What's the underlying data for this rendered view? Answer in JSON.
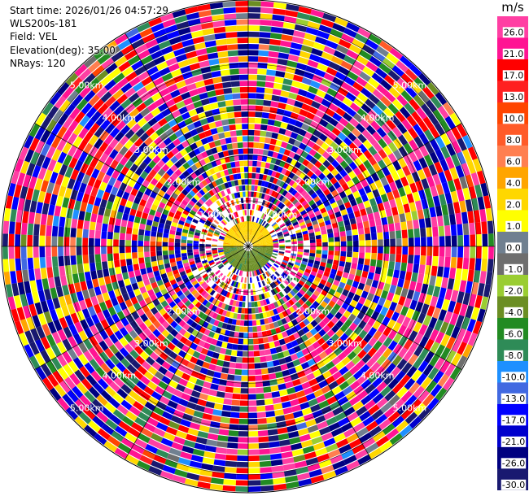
{
  "header": {
    "start_time": "Start time: 2026/01/26 04:57:29",
    "instrument": "WLS200s-181",
    "field": "Field: VEL",
    "elevation": "Elevation(deg): 35.00",
    "nrays": "NRays: 120"
  },
  "colorbar": {
    "unit": "m/s",
    "ticks": [
      "26.0",
      "21.0",
      "17.0",
      "13.0",
      "10.0",
      "8.0",
      "6.0",
      "4.0",
      "2.0",
      "1.0",
      "0.0",
      "-1.0",
      "-2.0",
      "-4.0",
      "-6.0",
      "-8.0",
      "-10.0",
      "-13.0",
      "-17.0",
      "-21.0",
      "-26.0",
      "-30.0"
    ],
    "colors": [
      "#ff3fa3",
      "#ff1493",
      "#ff0000",
      "#ff2020",
      "#ff4500",
      "#ff5a28",
      "#ff7f50",
      "#ffa500",
      "#ffd700",
      "#ffff00",
      "#708090",
      "#6e6e6e",
      "#9acd32",
      "#6b8e23",
      "#228b22",
      "#2e8b57",
      "#1e90ff",
      "#4169e1",
      "#0000ff",
      "#0000cd",
      "#000080",
      "#191970"
    ]
  },
  "chart_data": {
    "type": "heatmap",
    "plot": "PPI polar scan",
    "field": "VEL",
    "unit": "m/s",
    "nrays": 120,
    "color_levels": [
      26.0,
      21.0,
      17.0,
      13.0,
      10.0,
      8.0,
      6.0,
      4.0,
      2.0,
      1.0,
      0.0,
      -1.0,
      -2.0,
      -4.0,
      -6.0,
      -8.0,
      -10.0,
      -13.0,
      -17.0,
      -21.0,
      -26.0,
      -30.0
    ],
    "range_rings_km": [
      1.0,
      2.0,
      3.0,
      4.0,
      5.0
    ],
    "range_labels": [
      "1.00km",
      "2.00km",
      "3.00km",
      "4.00km",
      "5.00km"
    ],
    "max_range_km": 5.4,
    "gate_count": 36,
    "near_field": {
      "north_hemisphere_value": 2.0,
      "south_hemisphere_value": -4.0,
      "radius_km": 0.55
    }
  }
}
